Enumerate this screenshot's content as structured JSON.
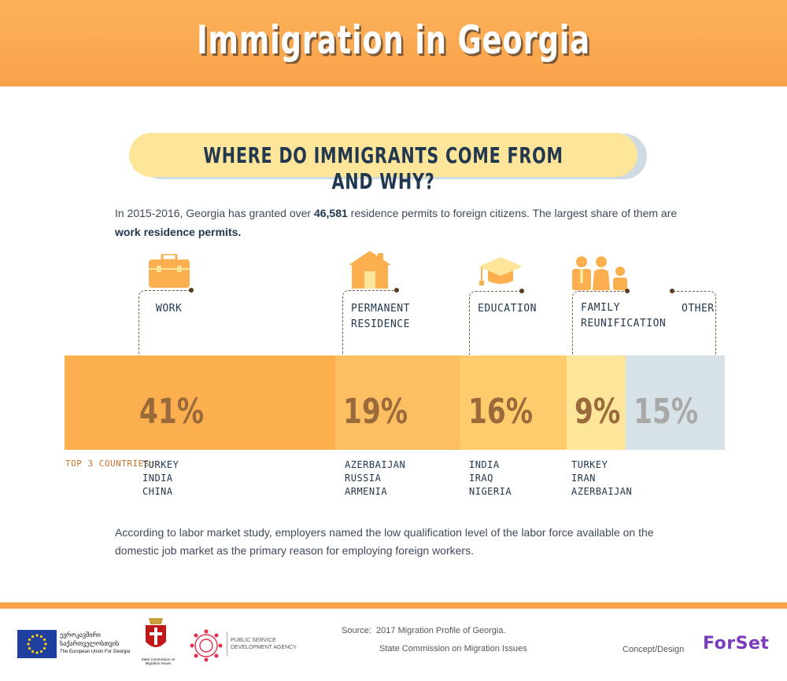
{
  "header": {
    "title": "Immigration in Georgia"
  },
  "question": "WHERE DO IMMIGRANTS COME FROM AND WHY?",
  "intro": {
    "p1": "In 2015-2016, Georgia has granted over ",
    "num": "46,581",
    "p2": " residence permits to foreign citizens. The largest share of them are ",
    "bold2": "work residence permits.",
    "p3": ""
  },
  "categories": [
    {
      "label": "WORK",
      "label2": "",
      "pct": "41%",
      "value": 41,
      "color": "#fcaf4e",
      "text_color": "#9a6a3a",
      "countries": [
        "TURKEY",
        "INDIA",
        "CHINA"
      ],
      "icon": "briefcase-icon"
    },
    {
      "label": "PERMANENT",
      "label2": "RESIDENCE",
      "pct": "19%",
      "value": 19,
      "color": "#fdbf62",
      "text_color": "#9a6a3a",
      "countries": [
        "AZERBAIJAN",
        "RUSSIA",
        "ARMENIA"
      ],
      "icon": "house-icon"
    },
    {
      "label": "EDUCATION",
      "label2": "",
      "pct": "16%",
      "value": 16,
      "color": "#fecb6d",
      "text_color": "#9a6a3a",
      "countries": [
        "INDIA",
        "IRAQ",
        "NIGERIA"
      ],
      "icon": "graduation-cap-icon"
    },
    {
      "label": "FAMILY",
      "label2": "REUNIFICATION",
      "pct": "9%",
      "value": 9,
      "color": "#fde69a",
      "text_color": "#9a6a3a",
      "countries": [
        "TURKEY",
        "IRAN",
        "AZERBAIJAN"
      ],
      "icon": "family-icon"
    },
    {
      "label": "OTHER",
      "label2": "",
      "pct": "15%",
      "value": 15,
      "color": "#d6e1e8",
      "text_color": "#a8a8a8",
      "countries": [],
      "icon": ""
    }
  ],
  "top3_label": "TOP 3 COUNTRIES:",
  "outro": "According to labor market study, employers named the low qualification level of the labor force available on the domestic job market as the primary reason for employing foreign workers.",
  "footer": {
    "eu_text_ka": "ევროკავშირი საქართველოსთვის",
    "eu_text_en": "The European Union For Georgia",
    "sc_text": "State Commission on Migration Issues",
    "psda_text": "PUBLIC SERVICE DEVELOPMENT AGENCY",
    "source_label": "Source:",
    "source_text": "2017 Migration Profile of Georgia.",
    "source2": "State Commission on Migration Issues",
    "concept": "Concept/Design",
    "brand": "ForSet"
  }
}
